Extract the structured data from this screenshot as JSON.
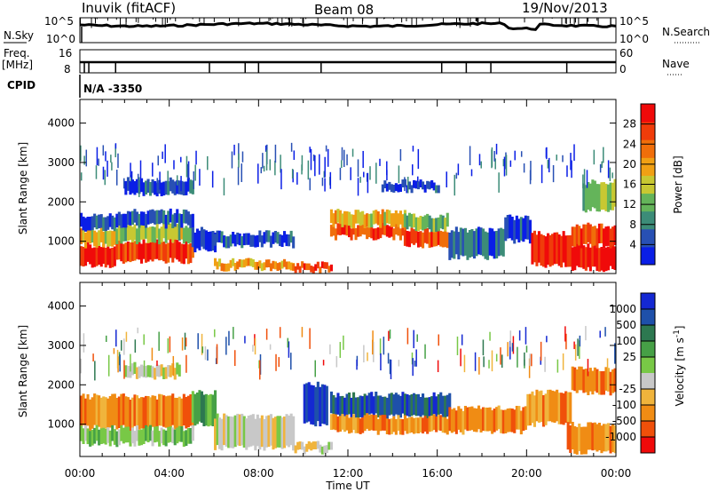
{
  "header": {
    "site": "Inuvik (fitACF)",
    "beam": "Beam 08",
    "date": "19/Nov/2013"
  },
  "top_panels": {
    "nsky_label": "N.Sky",
    "nsky_ticks": [
      "10^5",
      "10^0"
    ],
    "nsearch_label": "N.Search",
    "nsearch_ticks": [
      "10^5",
      "10^0"
    ],
    "freq_label_1": "Freq.",
    "freq_label_2": "[MHz]",
    "freq_ticks": [
      "16",
      "8"
    ],
    "nave_label": "Nave",
    "nave_ticks": [
      "60",
      "0"
    ],
    "cpid_label": "CPID",
    "cpid_value": "N/A -3350",
    "freq_change_hours": [
      0.2,
      0.4,
      1.6,
      5.8,
      7.4,
      8.0,
      10.8,
      16.2,
      17.3,
      18.4,
      21.8
    ]
  },
  "colors": {
    "power": [
      "#0a1ee6",
      "#2850b4",
      "#3c8c78",
      "#64b45a",
      "#c8c832",
      "#f0a014",
      "#f06e0a",
      "#f03c0a",
      "#f00a0a"
    ],
    "velocity": [
      "#f00a0a",
      "#f0500a",
      "#f08c14",
      "#f0b43c",
      "#c8c8c8",
      "#78c846",
      "#46a046",
      "#2d7850",
      "#1e50aa",
      "#1428d2"
    ]
  },
  "chart_data": [
    {
      "type": "heatmap",
      "panel": "power",
      "xlabel": "",
      "ylabel": "Slant Range [km]",
      "x_range_hours": [
        0,
        24
      ],
      "ylim": [
        180,
        4600
      ],
      "y_ticks": [
        1000,
        2000,
        3000,
        4000
      ],
      "colorbar": {
        "label": "Power [dB]",
        "range": [
          0,
          32
        ],
        "ticks": [
          "4",
          "8",
          "12",
          "16",
          "20",
          "24",
          "28"
        ]
      },
      "regions": [
        {
          "t0": 0.0,
          "t1": 1.6,
          "r0": 400,
          "r1": 900,
          "value": 30
        },
        {
          "t0": 0.0,
          "t1": 1.6,
          "r0": 900,
          "r1": 1300,
          "value": 18
        },
        {
          "t0": 0.0,
          "t1": 1.6,
          "r0": 1300,
          "r1": 1650,
          "value": 6
        },
        {
          "t0": 1.6,
          "t1": 5.0,
          "r0": 500,
          "r1": 1000,
          "value": 28
        },
        {
          "t0": 1.6,
          "t1": 5.0,
          "r0": 1000,
          "r1": 1400,
          "value": 14
        },
        {
          "t0": 1.6,
          "t1": 5.0,
          "r0": 1400,
          "r1": 1750,
          "value": 5
        },
        {
          "t0": 5.0,
          "t1": 6.0,
          "r0": 800,
          "r1": 1300,
          "value": 4
        },
        {
          "t0": 6.0,
          "t1": 9.5,
          "r0": 300,
          "r1": 500,
          "value": 20
        },
        {
          "t0": 6.0,
          "t1": 9.5,
          "r0": 900,
          "r1": 1200,
          "value": 5
        },
        {
          "t0": 9.5,
          "t1": 11.2,
          "r0": 250,
          "r1": 420,
          "value": 26
        },
        {
          "t0": 11.2,
          "t1": 14.5,
          "r0": 1100,
          "r1": 1400,
          "value": 26
        },
        {
          "t0": 11.2,
          "t1": 14.5,
          "r0": 1400,
          "r1": 1750,
          "value": 18
        },
        {
          "t0": 14.5,
          "t1": 16.5,
          "r0": 900,
          "r1": 1300,
          "value": 26
        },
        {
          "t0": 14.5,
          "t1": 16.5,
          "r0": 1300,
          "r1": 1650,
          "value": 12
        },
        {
          "t0": 16.5,
          "t1": 19.0,
          "r0": 600,
          "r1": 1300,
          "value": 6
        },
        {
          "t0": 19.0,
          "t1": 20.2,
          "r0": 1000,
          "r1": 1600,
          "value": 5
        },
        {
          "t0": 20.2,
          "t1": 22.0,
          "r0": 400,
          "r1": 1200,
          "value": 30
        },
        {
          "t0": 22.0,
          "t1": 24.0,
          "r0": 300,
          "r1": 900,
          "value": 31
        },
        {
          "t0": 22.0,
          "t1": 24.0,
          "r0": 900,
          "r1": 1400,
          "value": 26
        },
        {
          "t0": 22.5,
          "t1": 24.0,
          "r0": 1800,
          "r1": 2500,
          "value": 14
        },
        {
          "t0": 2.0,
          "t1": 5.0,
          "r0": 2200,
          "r1": 2550,
          "value": 4
        },
        {
          "t0": 13.5,
          "t1": 16.0,
          "r0": 2300,
          "r1": 2500,
          "value": 4
        }
      ]
    },
    {
      "type": "heatmap",
      "panel": "velocity",
      "xlabel": "Time UT",
      "ylabel": "Slant Range [km]",
      "x_range_hours": [
        0,
        24
      ],
      "x_tick_labels": [
        "00:00",
        "04:00",
        "08:00",
        "12:00",
        "16:00",
        "20:00",
        "00:00"
      ],
      "ylim": [
        180,
        4600
      ],
      "y_ticks": [
        1000,
        2000,
        3000,
        4000
      ],
      "colorbar": {
        "label": "Velocity [m s^-1]",
        "ticks": [
          "1000",
          "500",
          "100",
          "25",
          "-25",
          "-100",
          "-500",
          "-1000"
        ]
      },
      "regions": [
        {
          "t0": 0.0,
          "t1": 5.0,
          "r0": 900,
          "r1": 1700,
          "value": "-100"
        },
        {
          "t0": 0.0,
          "t1": 5.0,
          "r0": 500,
          "r1": 900,
          "value": "25"
        },
        {
          "t0": 5.0,
          "t1": 6.0,
          "r0": 1000,
          "r1": 1800,
          "value": "100"
        },
        {
          "t0": 6.0,
          "t1": 9.5,
          "r0": 400,
          "r1": 1200,
          "value": "0"
        },
        {
          "t0": 9.5,
          "t1": 11.2,
          "r0": 300,
          "r1": 500,
          "value": "0"
        },
        {
          "t0": 11.2,
          "t1": 16.5,
          "r0": 1200,
          "r1": 1750,
          "value": "500"
        },
        {
          "t0": 11.2,
          "t1": 16.5,
          "r0": 800,
          "r1": 1200,
          "value": "-100"
        },
        {
          "t0": 16.5,
          "t1": 20.0,
          "r0": 800,
          "r1": 1400,
          "value": "-100"
        },
        {
          "t0": 20.0,
          "t1": 22.0,
          "r0": 1000,
          "r1": 1800,
          "value": "-100"
        },
        {
          "t0": 21.8,
          "t1": 24.0,
          "r0": 300,
          "r1": 1000,
          "value": "-100"
        },
        {
          "t0": 22.0,
          "t1": 24.0,
          "r0": 1800,
          "r1": 2400,
          "value": "-100"
        },
        {
          "t0": 2.0,
          "t1": 4.5,
          "r0": 2200,
          "r1": 2500,
          "value": "0"
        },
        {
          "t0": 10.0,
          "t1": 11.0,
          "r0": 1000,
          "r1": 2000,
          "value": "1000"
        }
      ]
    }
  ]
}
